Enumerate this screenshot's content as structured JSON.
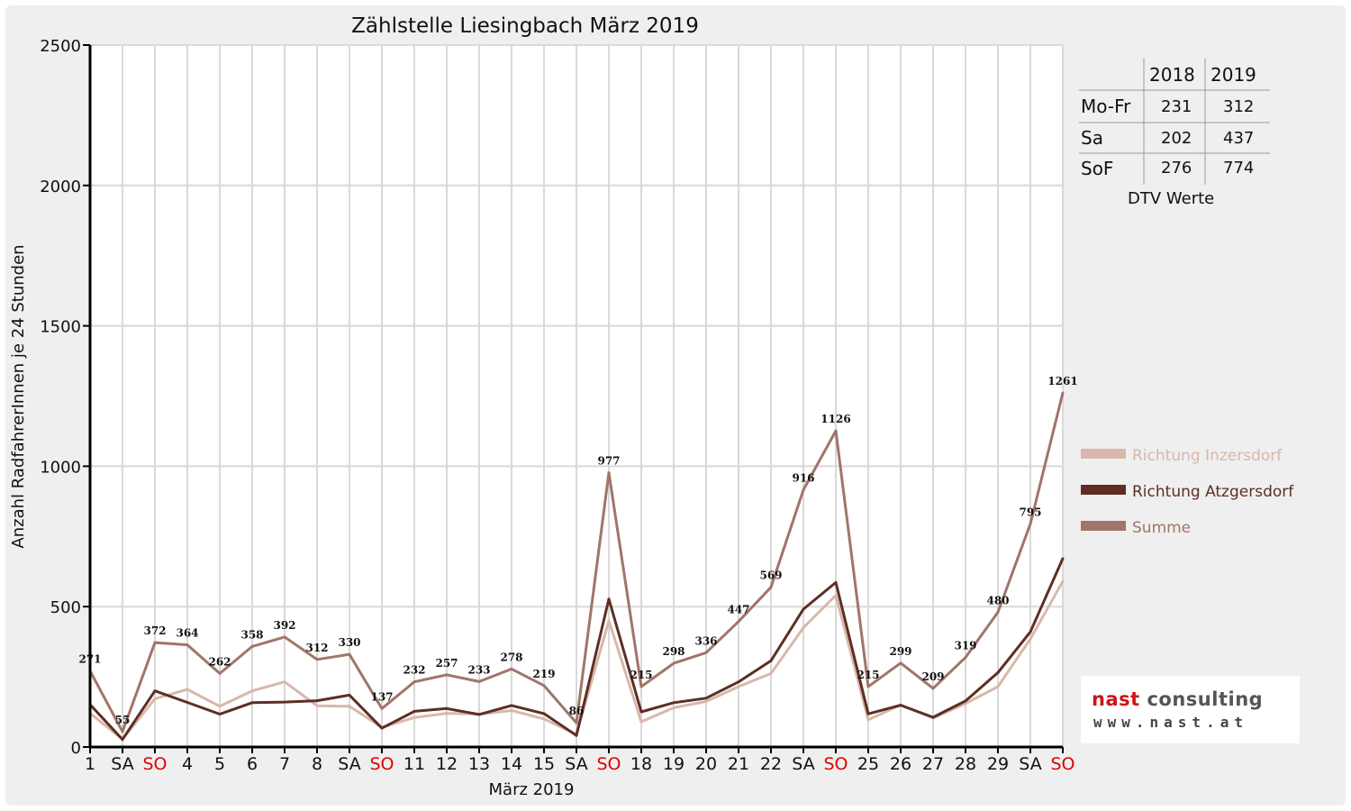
{
  "chart_data": {
    "type": "line",
    "title": "Zählstelle Liesingbach März 2019",
    "xlabel": "März 2019",
    "ylabel": "Anzahl RadfahrerInnen je 24 Stunden",
    "ylim": [
      0,
      2500
    ],
    "yticks": [
      0,
      500,
      1000,
      1500,
      2000,
      2500
    ],
    "grid": true,
    "legend_position": "right",
    "categories": [
      "1",
      "SA",
      "SO",
      "4",
      "5",
      "6",
      "7",
      "8",
      "SA",
      "SO",
      "11",
      "12",
      "13",
      "14",
      "15",
      "SA",
      "SO",
      "18",
      "19",
      "20",
      "21",
      "22",
      "SA",
      "SO",
      "25",
      "26",
      "27",
      "28",
      "29",
      "SA",
      "SO"
    ],
    "weekend_red": [
      2,
      9,
      16,
      23,
      30
    ],
    "series": [
      {
        "name": "Richtung Inzersdorf",
        "color": "#d7b8aa",
        "values": [
          120,
          28,
          172,
          205,
          145,
          200,
          232,
          147,
          145,
          70,
          105,
          120,
          117,
          130,
          100,
          45,
          450,
          90,
          140,
          162,
          215,
          262,
          425,
          540,
          97,
          150,
          103,
          155,
          215,
          385,
          590
        ]
      },
      {
        "name": "Richtung Atzgersdorf",
        "color": "#5e2e24",
        "values": [
          151,
          27,
          200,
          159,
          117,
          158,
          160,
          165,
          185,
          67,
          127,
          137,
          116,
          148,
          119,
          41,
          527,
          125,
          158,
          174,
          232,
          307,
          491,
          586,
          118,
          149,
          106,
          164,
          265,
          410,
          671
        ]
      },
      {
        "name": "Summe",
        "color": "#a0756a",
        "values": [
          271,
          55,
          372,
          364,
          262,
          358,
          392,
          312,
          330,
          137,
          232,
          257,
          233,
          278,
          219,
          86,
          977,
          215,
          298,
          336,
          447,
          569,
          916,
          1126,
          215,
          299,
          209,
          319,
          480,
          795,
          1261
        ],
        "data_labels": true
      }
    ]
  },
  "dtv_table": {
    "headers": [
      "",
      "2018",
      "2019"
    ],
    "rows": [
      {
        "label": "Mo-Fr",
        "v2018": "231",
        "v2019": "312"
      },
      {
        "label": "Sa",
        "v2018": "202",
        "v2019": "437"
      },
      {
        "label": "SoF",
        "v2018": "276",
        "v2019": "774"
      }
    ],
    "caption": "DTV Werte"
  },
  "logo": {
    "brand_a": "nast",
    "brand_b": "consulting",
    "url": "www.nast.at",
    "brand_color": "#d21414"
  }
}
